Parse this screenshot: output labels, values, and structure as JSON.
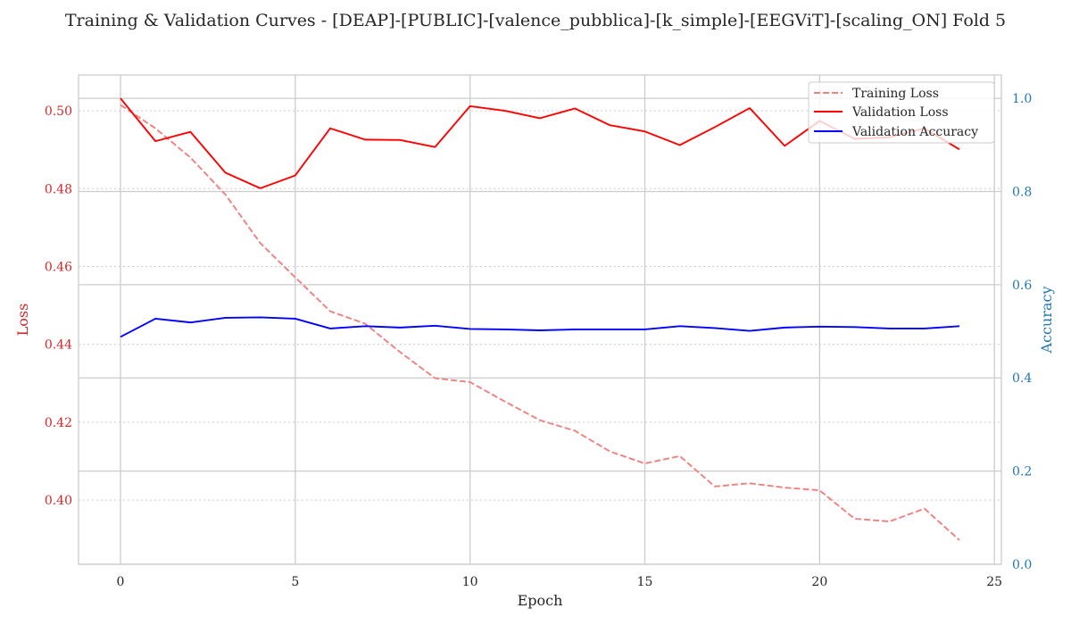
{
  "chart_data": {
    "type": "line",
    "title": "Training & Validation Curves - [DEAP]-[PUBLIC]-[valence_pubblica]-[k_simple]-[EEGViT]-[scaling_ON] Fold 5",
    "xlabel": "Epoch",
    "ylabel_left": "Loss",
    "ylabel_right": "Accuracy",
    "xlim": [
      -1.2,
      25.2
    ],
    "ylim_left": [
      0.3835,
      0.5092
    ],
    "ylim_right": [
      0.0,
      1.05
    ],
    "x_ticks": [
      0,
      5,
      10,
      15,
      20,
      25
    ],
    "y_left_ticks": [
      0.4,
      0.42,
      0.44,
      0.46,
      0.48,
      0.5
    ],
    "y_right_ticks": [
      0.0,
      0.2,
      0.4,
      0.6,
      0.8,
      1.0
    ],
    "x_tick_labels": [
      "0",
      "5",
      "10",
      "15",
      "20",
      "25"
    ],
    "y_left_tick_labels": [
      "0.40",
      "0.42",
      "0.44",
      "0.46",
      "0.48",
      "0.50"
    ],
    "y_right_tick_labels": [
      "0.0",
      "0.2",
      "0.4",
      "0.6",
      "0.8",
      "1.0"
    ],
    "grid": true,
    "legend_position": "top-right",
    "colors": {
      "training_loss": "#f08080",
      "validation_loss": "#ff0000",
      "validation_accuracy": "#0000ff",
      "left_axis": "#d62728",
      "right_axis": "#1f77b4"
    },
    "x": [
      0,
      1,
      2,
      3,
      4,
      5,
      6,
      7,
      8,
      9,
      10,
      11,
      12,
      13,
      14,
      15,
      16,
      17,
      18,
      19,
      20,
      21,
      22,
      23,
      24
    ],
    "series": [
      {
        "name": "Training Loss",
        "axis": "left",
        "style": "dashed",
        "color": "#f08080",
        "values": [
          0.5015,
          0.4955,
          0.488,
          0.4785,
          0.466,
          0.4572,
          0.4485,
          0.4453,
          0.438,
          0.4313,
          0.4303,
          0.4253,
          0.4205,
          0.4178,
          0.4125,
          0.4094,
          0.4113,
          0.4035,
          0.4043,
          0.4032,
          0.4025,
          0.3952,
          0.3945,
          0.3978,
          0.3897
        ]
      },
      {
        "name": "Validation Loss",
        "axis": "left",
        "style": "solid",
        "color": "#ff0000",
        "values": [
          0.5032,
          0.4922,
          0.4946,
          0.4841,
          0.4801,
          0.4834,
          0.4955,
          0.4926,
          0.4925,
          0.4907,
          0.5012,
          0.5,
          0.4981,
          0.5006,
          0.4963,
          0.4947,
          0.4912,
          0.4958,
          0.5007,
          0.491,
          0.4974,
          0.4928,
          0.4932,
          0.4955,
          0.4901
        ]
      },
      {
        "name": "Validation Accuracy",
        "axis": "right",
        "style": "solid",
        "color": "#0000ff",
        "values": [
          0.488,
          0.527,
          0.519,
          0.529,
          0.53,
          0.527,
          0.506,
          0.511,
          0.508,
          0.512,
          0.505,
          0.504,
          0.502,
          0.504,
          0.504,
          0.504,
          0.511,
          0.507,
          0.501,
          0.508,
          0.51,
          0.509,
          0.506,
          0.506,
          0.511
        ]
      }
    ]
  }
}
